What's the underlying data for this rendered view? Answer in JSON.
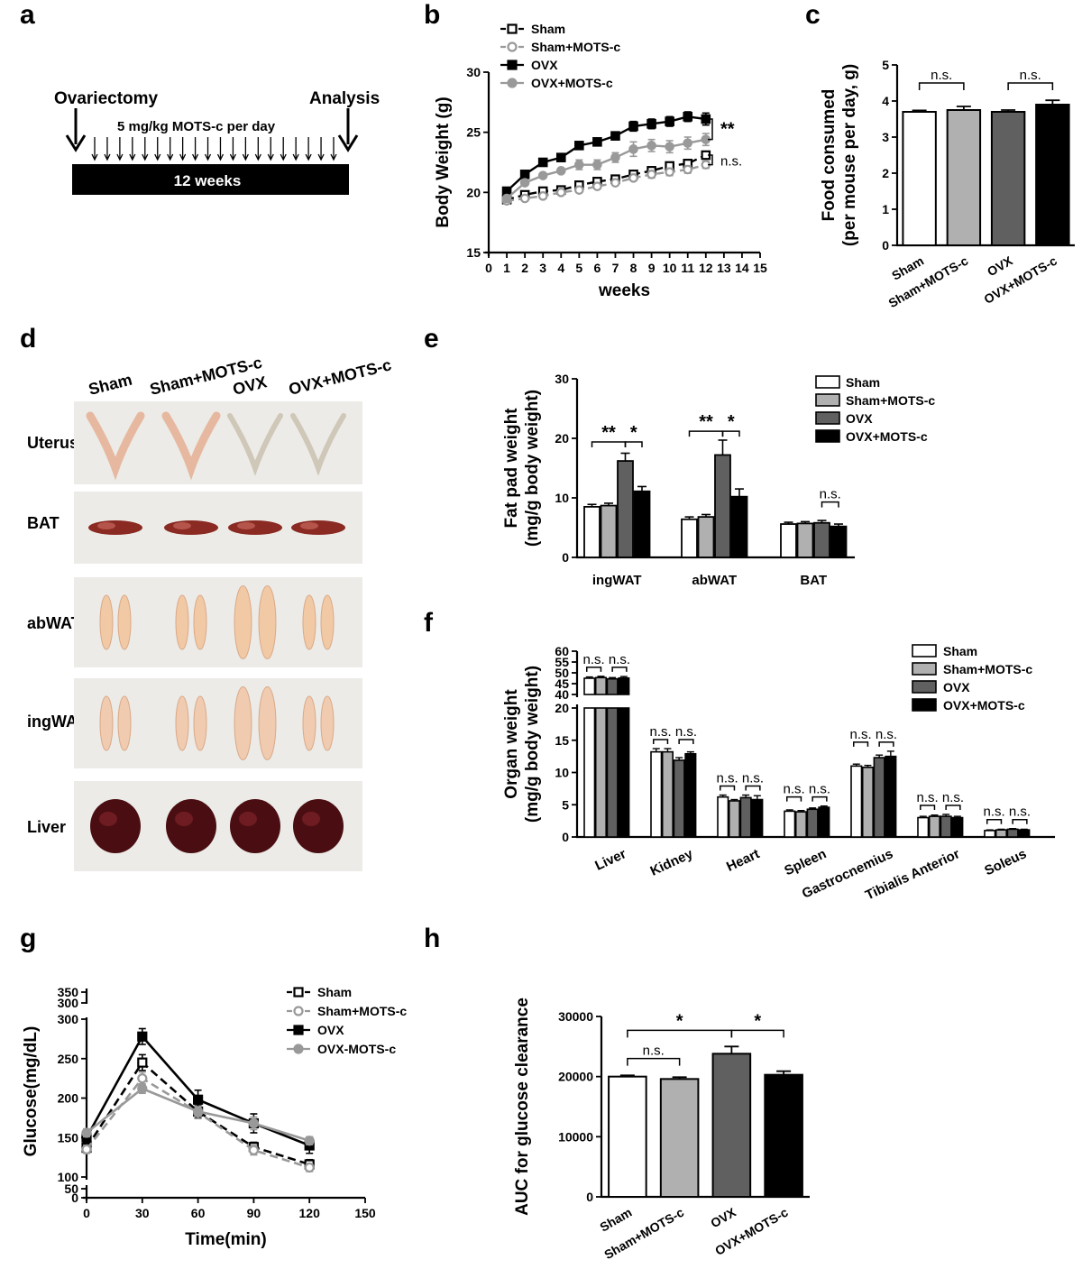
{
  "panel_labels": [
    "a",
    "b",
    "c",
    "d",
    "e",
    "f",
    "g",
    "h"
  ],
  "colors": {
    "sham": "#ffffff",
    "sham_mots": "#b0b0b0",
    "ovx": "#606060",
    "ovx_mots": "#000000",
    "tissue_bg": "#ecebe7"
  },
  "timeline": {
    "left_label": "Ovariectomy",
    "right_label": "Analysis",
    "dose_label": "5 mg/kg MOTS-c per day",
    "bar_label": "12 weeks",
    "arrow_count": 20
  },
  "photos": {
    "columns": [
      "Sham",
      "Sham+MOTS-c",
      "OVX",
      "OVX+MOTS-c"
    ],
    "rows": [
      {
        "label": "Uterus",
        "tissue": "uterus"
      },
      {
        "label": "BAT",
        "tissue": "bat"
      },
      {
        "label": "abWAT",
        "tissue": "abwat"
      },
      {
        "label": "ingWAT",
        "tissue": "ingwat"
      },
      {
        "label": "Liver",
        "tissue": "liver"
      }
    ]
  },
  "chart_data": [
    {
      "id": "b",
      "type": "line",
      "xlabel": "weeks",
      "ylabel": "Body Weight (g)",
      "xlim": [
        0,
        15
      ],
      "ylim": [
        15,
        30
      ],
      "xticks": [
        0,
        1,
        2,
        3,
        4,
        5,
        6,
        7,
        8,
        9,
        10,
        11,
        12,
        13,
        14,
        15
      ],
      "yticks": [
        15,
        20,
        25,
        30
      ],
      "x": [
        1,
        2,
        3,
        4,
        5,
        6,
        7,
        8,
        9,
        10,
        11,
        12
      ],
      "series": [
        {
          "name": "Sham",
          "marker": "open-square",
          "dash": true,
          "color": "#000000",
          "values": [
            19.4,
            19.8,
            20.1,
            20.2,
            20.6,
            20.9,
            21.1,
            21.5,
            21.8,
            22.2,
            22.4,
            23.1
          ],
          "errors": [
            0.2,
            0.2,
            0.2,
            0.2,
            0.2,
            0.2,
            0.2,
            0.3,
            0.3,
            0.3,
            0.3,
            0.3
          ]
        },
        {
          "name": "Sham+MOTS-c",
          "marker": "open-circle",
          "dash": true,
          "color": "#999999",
          "values": [
            19.3,
            19.5,
            19.7,
            20.0,
            20.2,
            20.5,
            20.8,
            21.2,
            21.5,
            21.7,
            21.9,
            22.3
          ],
          "errors": [
            0.2,
            0.2,
            0.2,
            0.2,
            0.2,
            0.2,
            0.2,
            0.2,
            0.3,
            0.3,
            0.3,
            0.3
          ]
        },
        {
          "name": "OVX",
          "marker": "filled-square",
          "dash": false,
          "color": "#000000",
          "values": [
            20.1,
            21.5,
            22.5,
            22.9,
            23.9,
            24.2,
            24.7,
            25.5,
            25.7,
            25.9,
            26.3,
            26.1
          ],
          "errors": [
            0.2,
            0.2,
            0.2,
            0.2,
            0.3,
            0.3,
            0.3,
            0.4,
            0.4,
            0.4,
            0.4,
            0.5
          ]
        },
        {
          "name": "OVX+MOTS-c",
          "marker": "filled-circle",
          "dash": false,
          "color": "#999999",
          "values": [
            19.5,
            20.8,
            21.4,
            21.8,
            22.3,
            22.3,
            22.9,
            23.6,
            23.9,
            23.8,
            24.1,
            24.4
          ],
          "errors": [
            0.2,
            0.2,
            0.2,
            0.2,
            0.4,
            0.4,
            0.4,
            0.6,
            0.5,
            0.5,
            0.5,
            0.5
          ]
        }
      ],
      "annotations": [
        {
          "text": "**",
          "y_from": 24.4,
          "y_to": 26.1
        },
        {
          "text": "n.s.",
          "y_from": 22.3,
          "y_to": 23.1
        }
      ],
      "legend": "top-left"
    },
    {
      "id": "c",
      "type": "bar",
      "ylabel": "Food consumed (per mouse per day, g)",
      "ylabel_lines": [
        "Food consumed",
        "(per mouse per day, g)"
      ],
      "ylim": [
        0,
        5
      ],
      "yticks": [
        0,
        1,
        2,
        3,
        4,
        5
      ],
      "categories": [
        "Sham",
        "Sham+MOTS-c",
        "OVX",
        "OVX+MOTS-c"
      ],
      "values": [
        3.7,
        3.75,
        3.7,
        3.9
      ],
      "errors": [
        0.04,
        0.1,
        0.05,
        0.12
      ],
      "annotations": [
        {
          "text": "n.s.",
          "from": 0,
          "to": 1,
          "y": 4.5
        },
        {
          "text": "n.s.",
          "from": 2,
          "to": 3,
          "y": 4.5
        }
      ]
    },
    {
      "id": "e",
      "type": "bar",
      "ylabel": "Fat pad weight (mg/g body weight)",
      "ylabel_lines": [
        "Fat pad weight",
        "(mg/g body weight)"
      ],
      "ylim": [
        0,
        30
      ],
      "yticks": [
        0,
        10,
        20,
        30
      ],
      "categories": [
        "ingWAT",
        "abWAT",
        "BAT"
      ],
      "series": [
        {
          "name": "Sham",
          "values": [
            8.5,
            6.4,
            5.6
          ],
          "errors": [
            0.4,
            0.4,
            0.3
          ]
        },
        {
          "name": "Sham+MOTS-c",
          "values": [
            8.7,
            6.8,
            5.7
          ],
          "errors": [
            0.4,
            0.4,
            0.3
          ]
        },
        {
          "name": "OVX",
          "values": [
            16.2,
            17.2,
            5.8
          ],
          "errors": [
            1.3,
            2.5,
            0.4
          ]
        },
        {
          "name": "OVX+MOTS-c",
          "values": [
            11.1,
            10.2,
            5.2
          ],
          "errors": [
            0.8,
            1.3,
            0.4
          ]
        }
      ],
      "annotations": [
        {
          "text": "**",
          "group": 0,
          "from": 0,
          "to": 2,
          "y": 19.4
        },
        {
          "text": "*",
          "group": 0,
          "from": 2,
          "to": 3,
          "y": 19.4
        },
        {
          "text": "**",
          "group": 1,
          "from": 0,
          "to": 2,
          "y": 21.2
        },
        {
          "text": "*",
          "group": 1,
          "from": 2,
          "to": 3,
          "y": 21.2
        },
        {
          "text": "n.s.",
          "group": 2,
          "from": 2,
          "to": 3,
          "y": 9.3
        }
      ],
      "legend": "top-right"
    },
    {
      "id": "f",
      "type": "bar",
      "ylabel": "Organ weight (mg/g body weight)",
      "ylabel_lines": [
        "Organ weight",
        "(mg/g body weight)"
      ],
      "ylim": [
        0,
        60
      ],
      "axis_break": [
        20,
        40
      ],
      "yticks": [
        0,
        5,
        10,
        15,
        20,
        40,
        45,
        50,
        55,
        60
      ],
      "categories": [
        "Liver",
        "Kidney",
        "Heart",
        "Spleen",
        "Gastrocnemius",
        "Tibialis Anterior",
        "Soleus"
      ],
      "series": [
        {
          "name": "Sham",
          "values": [
            47.5,
            13.2,
            6.2,
            4.0,
            11.0,
            3.0,
            1.0
          ],
          "errors": [
            0.6,
            0.5,
            0.3,
            0.2,
            0.3,
            0.2,
            0.1
          ]
        },
        {
          "name": "Sham+MOTS-c",
          "values": [
            47.8,
            13.2,
            5.6,
            3.9,
            10.8,
            3.2,
            1.1
          ],
          "errors": [
            0.6,
            0.5,
            0.2,
            0.2,
            0.3,
            0.2,
            0.1
          ]
        },
        {
          "name": "OVX",
          "values": [
            47.2,
            11.9,
            6.1,
            4.3,
            12.3,
            3.2,
            1.2
          ],
          "errors": [
            0.6,
            0.4,
            0.4,
            0.2,
            0.4,
            0.3,
            0.1
          ]
        },
        {
          "name": "OVX+MOTS-c",
          "values": [
            47.6,
            12.9,
            5.8,
            4.6,
            12.5,
            3.0,
            1.1
          ],
          "errors": [
            0.7,
            0.3,
            0.6,
            0.2,
            0.8,
            0.2,
            0.1
          ]
        }
      ],
      "annotations": [
        {
          "text": "n.s.",
          "group": 0,
          "pair": [
            0,
            1
          ]
        },
        {
          "text": "n.s.",
          "group": 0,
          "pair": [
            2,
            3
          ]
        },
        {
          "text": "n.s.",
          "group": 1,
          "pair": [
            0,
            1
          ]
        },
        {
          "text": "n.s.",
          "group": 1,
          "pair": [
            2,
            3
          ]
        },
        {
          "text": "n.s.",
          "group": 2,
          "pair": [
            0,
            1
          ]
        },
        {
          "text": "n.s.",
          "group": 2,
          "pair": [
            2,
            3
          ]
        },
        {
          "text": "n.s.",
          "group": 3,
          "pair": [
            0,
            1
          ]
        },
        {
          "text": "n.s.",
          "group": 3,
          "pair": [
            2,
            3
          ]
        },
        {
          "text": "n.s.",
          "group": 4,
          "pair": [
            0,
            1
          ]
        },
        {
          "text": "n.s.",
          "group": 4,
          "pair": [
            2,
            3
          ]
        },
        {
          "text": "n.s.",
          "group": 5,
          "pair": [
            0,
            1
          ]
        },
        {
          "text": "n.s.",
          "group": 5,
          "pair": [
            2,
            3
          ]
        },
        {
          "text": "n.s.",
          "group": 6,
          "pair": [
            0,
            1
          ]
        },
        {
          "text": "n.s.",
          "group": 6,
          "pair": [
            2,
            3
          ]
        }
      ],
      "legend": "top-right"
    },
    {
      "id": "g",
      "type": "line",
      "xlabel": "Time(min)",
      "ylabel": "Glucose(mg/dL)",
      "xlim": [
        0,
        150
      ],
      "xticks": [
        0,
        30,
        60,
        90,
        120,
        150
      ],
      "yticks_main": [
        100,
        150,
        200,
        250,
        300
      ],
      "yticks_low": [
        0,
        50
      ],
      "yticks_high": [
        300,
        350
      ],
      "x": [
        0,
        30,
        60,
        90,
        120
      ],
      "series": [
        {
          "name": "Sham",
          "marker": "open-square",
          "dash": true,
          "color": "#000000",
          "values": [
            137,
            245,
            183,
            138,
            116
          ],
          "errors": [
            5,
            10,
            8,
            6,
            6
          ]
        },
        {
          "name": "Sham+MOTS-c",
          "marker": "open-circle",
          "dash": true,
          "color": "#999999",
          "values": [
            135,
            225,
            182,
            134,
            112
          ],
          "errors": [
            5,
            8,
            8,
            6,
            5
          ]
        },
        {
          "name": "OVX",
          "marker": "filled-square",
          "dash": false,
          "color": "#000000",
          "values": [
            150,
            278,
            198,
            168,
            140
          ],
          "errors": [
            6,
            10,
            12,
            12,
            10
          ]
        },
        {
          "name": "OVX-MOTS-c",
          "marker": "filled-circle",
          "dash": false,
          "color": "#999999",
          "values": [
            156,
            212,
            183,
            168,
            146
          ],
          "errors": [
            5,
            6,
            6,
            8,
            5
          ]
        }
      ],
      "legend": "top-right"
    },
    {
      "id": "h",
      "type": "bar",
      "ylabel": "AUC for glucose clearance",
      "ylim": [
        0,
        30000
      ],
      "yticks": [
        0,
        10000,
        20000,
        30000
      ],
      "categories": [
        "Sham",
        "Sham+MOTS-c",
        "OVX",
        "OVX+MOTS-c"
      ],
      "values": [
        20000,
        19600,
        23800,
        20300
      ],
      "errors": [
        200,
        300,
        1200,
        600
      ],
      "annotations": [
        {
          "text": "n.s.",
          "from": 0,
          "to": 1,
          "y": 23000
        },
        {
          "text": "*",
          "from": 0,
          "to": 2,
          "y": 27700
        },
        {
          "text": "*",
          "from": 2,
          "to": 3,
          "y": 27700
        }
      ]
    }
  ]
}
